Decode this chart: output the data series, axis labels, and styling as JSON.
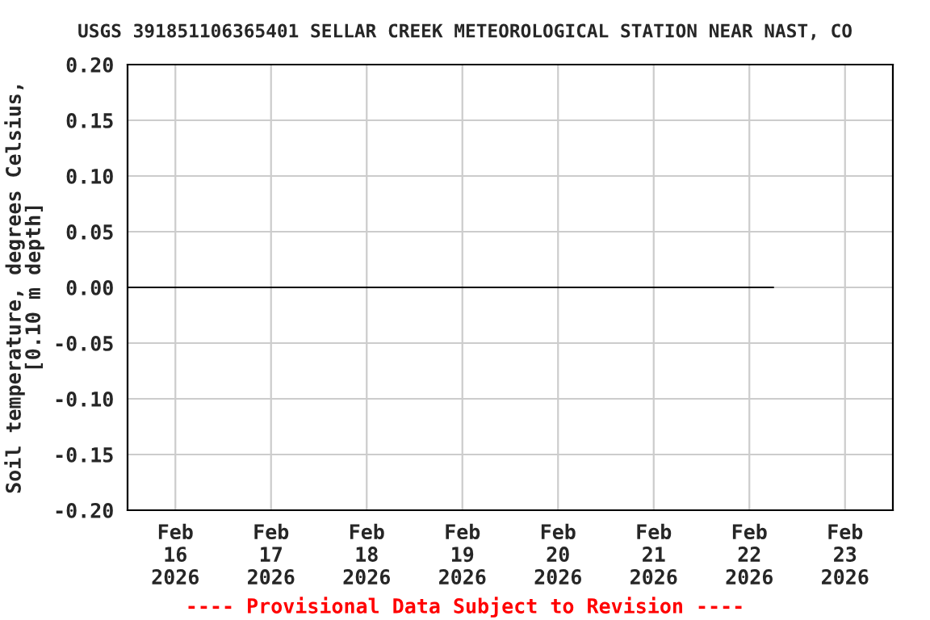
{
  "chart_data": {
    "type": "line",
    "title": "USGS 391851106365401 SELLAR CREEK METEOROLOGICAL STATION NEAR NAST, CO",
    "ylabel": "Soil temperature, degrees Celsius,\n[0.10 m depth]",
    "x": [
      "2026-02-15T12:00",
      "2026-02-16T00:00",
      "2026-02-17T00:00",
      "2026-02-18T00:00",
      "2026-02-19T00:00",
      "2026-02-20T00:00",
      "2026-02-21T00:00",
      "2026-02-22T00:00",
      "2026-02-22T06:00"
    ],
    "series": [
      {
        "color": "#000000",
        "values": [
          0,
          0,
          0,
          0,
          0,
          0,
          0,
          0,
          0
        ]
      }
    ],
    "xlim": [
      "2026-02-15T12:00",
      "2026-02-23T12:00"
    ],
    "xticks": [
      {
        "value": "2026-02-16",
        "label": "Feb\n16\n2026"
      },
      {
        "value": "2026-02-17",
        "label": "Feb\n17\n2026"
      },
      {
        "value": "2026-02-18",
        "label": "Feb\n18\n2026"
      },
      {
        "value": "2026-02-19",
        "label": "Feb\n19\n2026"
      },
      {
        "value": "2026-02-20",
        "label": "Feb\n20\n2026"
      },
      {
        "value": "2026-02-21",
        "label": "Feb\n21\n2026"
      },
      {
        "value": "2026-02-22",
        "label": "Feb\n22\n2026"
      },
      {
        "value": "2026-02-23",
        "label": "Feb\n23\n2026"
      }
    ],
    "ylim": [
      -0.2,
      0.2
    ],
    "yticks": [
      {
        "value": -0.2,
        "label": "-0.20"
      },
      {
        "value": -0.15,
        "label": "-0.15"
      },
      {
        "value": -0.1,
        "label": "-0.10"
      },
      {
        "value": -0.05,
        "label": "-0.05"
      },
      {
        "value": 0,
        "label": "0.00"
      },
      {
        "value": 0.05,
        "label": "0.05"
      },
      {
        "value": 0.1,
        "label": "0.10"
      },
      {
        "value": 0.15,
        "label": "0.15"
      },
      {
        "value": 0.2,
        "label": "0.20"
      }
    ],
    "grid": true,
    "marker": "none",
    "line_style": "solid",
    "annotations": [
      "---- Provisional Data Subject to Revision ----"
    ]
  }
}
